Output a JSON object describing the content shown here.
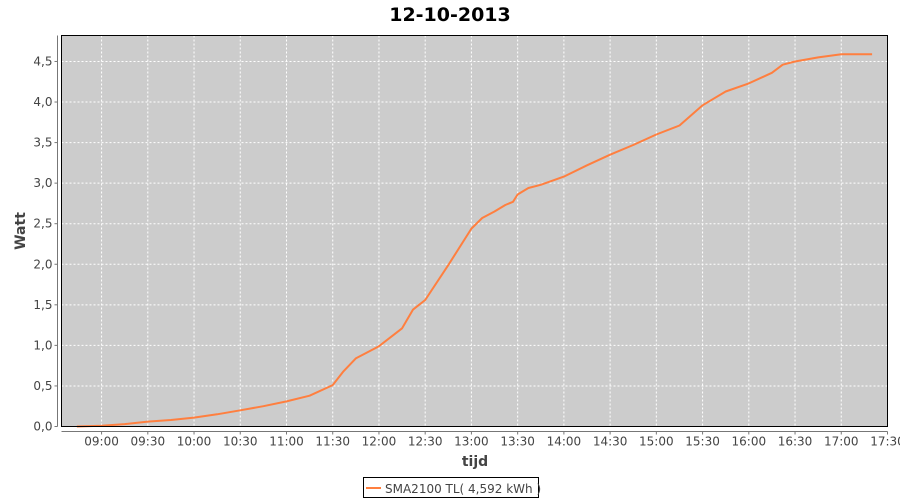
{
  "chart_data": {
    "type": "line",
    "title": "12-10-2013",
    "xlabel": "tijd",
    "ylabel": "Watt",
    "xlim": [
      "08:34",
      "17:30"
    ],
    "ylim": [
      0,
      4.82
    ],
    "grid": true,
    "legend_position": "bottom",
    "x_ticks": [
      "09:00",
      "09:30",
      "10:00",
      "10:30",
      "11:00",
      "11:30",
      "12:00",
      "12:30",
      "13:00",
      "13:30",
      "14:00",
      "14:30",
      "15:00",
      "15:30",
      "16:00",
      "16:30",
      "17:00",
      "17:30"
    ],
    "y_ticks": [
      "0,0",
      "0,5",
      "1,0",
      "1,5",
      "2,0",
      "2,5",
      "3,0",
      "3,5",
      "4,0",
      "4,5"
    ],
    "y_tick_values": [
      0,
      0.5,
      1,
      1.5,
      2,
      2.5,
      3,
      3.5,
      4,
      4.5
    ],
    "colors": {
      "plot_background": "#cccccc",
      "series": "#ff7f3f",
      "grid": "#ffffff"
    },
    "series": [
      {
        "name": "SMA2100 TL( 4,592 kWh )",
        "x": [
          "08:44",
          "09:00",
          "09:15",
          "09:30",
          "09:45",
          "10:00",
          "10:15",
          "10:30",
          "10:45",
          "11:00",
          "11:15",
          "11:30",
          "11:37",
          "11:45",
          "12:00",
          "12:15",
          "12:22",
          "12:30",
          "12:45",
          "13:00",
          "13:07",
          "13:15",
          "13:22",
          "13:27",
          "13:30",
          "13:37",
          "13:45",
          "14:00",
          "14:15",
          "14:30",
          "14:45",
          "15:00",
          "15:15",
          "15:30",
          "15:37",
          "15:45",
          "16:00",
          "16:15",
          "16:22",
          "16:30",
          "16:45",
          "17:00",
          "17:20"
        ],
        "y": [
          0.0,
          0.01,
          0.03,
          0.06,
          0.08,
          0.11,
          0.15,
          0.2,
          0.25,
          0.31,
          0.38,
          0.51,
          0.68,
          0.84,
          0.99,
          1.21,
          1.44,
          1.56,
          1.99,
          2.44,
          2.57,
          2.65,
          2.73,
          2.77,
          2.86,
          2.94,
          2.98,
          3.08,
          3.22,
          3.35,
          3.47,
          3.6,
          3.71,
          3.96,
          4.04,
          4.13,
          4.23,
          4.36,
          4.46,
          4.5,
          4.55,
          4.59,
          4.59
        ]
      }
    ]
  }
}
